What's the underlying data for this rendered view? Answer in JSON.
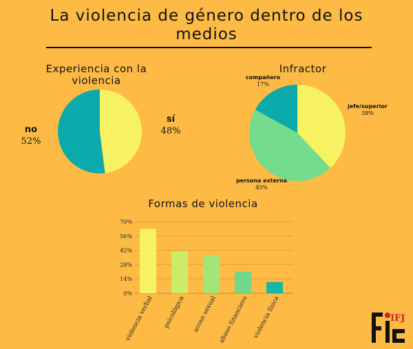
{
  "title": "La violencia de género dentro de los medios",
  "pie_experience": {
    "title": "Experiencia con la violencia",
    "slices": [
      {
        "label": "no",
        "value": 52,
        "display": "52%",
        "color": "#0CAAAA"
      },
      {
        "label": "sí",
        "value": 48,
        "display": "48%",
        "color": "#F7F261"
      }
    ]
  },
  "pie_offender": {
    "title": "Infractor",
    "slices": [
      {
        "label": "jefe/superior",
        "value": 38,
        "display": "38%",
        "color": "#F7F261"
      },
      {
        "label": "persona externa",
        "value": 45,
        "display": "45%",
        "color": "#74DC8C"
      },
      {
        "label": "compañero",
        "value": 17,
        "display": "17%",
        "color": "#0CAAAA"
      }
    ]
  },
  "chart_data": {
    "type": "bar",
    "title": "Formas de violencia",
    "categories": [
      "violencia verbal",
      "psicológica",
      "acoso sexual",
      "abuso financiero",
      "violencia física"
    ],
    "values": [
      63,
      41,
      37,
      21,
      11
    ],
    "colors": [
      "#F7F261",
      "#CDEB6A",
      "#A4E575",
      "#6FD88A",
      "#17B7A5"
    ],
    "ylim": [
      0,
      70
    ],
    "yticks": [
      0,
      14,
      28,
      42,
      56,
      70
    ],
    "ytick_labels": [
      "0%",
      "14%",
      "28%",
      "42%",
      "56%",
      "70%"
    ],
    "xlabel": "",
    "ylabel": "",
    "grid": true
  },
  "logo": {
    "text1": "FIJ",
    "text2": "IFJ",
    "accent": "#D0202A"
  }
}
